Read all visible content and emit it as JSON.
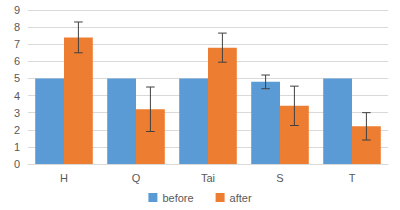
{
  "chart_data": {
    "type": "bar",
    "categories": [
      "H",
      "Q",
      "Tai",
      "S",
      "T"
    ],
    "series": [
      {
        "name": "before",
        "color": "#5b9bd5",
        "values": [
          5,
          5,
          5,
          4.8,
          5
        ],
        "errors": [
          0,
          0,
          0,
          0.4,
          0
        ]
      },
      {
        "name": "after",
        "color": "#ed7d31",
        "values": [
          7.4,
          3.2,
          6.8,
          3.4,
          2.2
        ],
        "errors": [
          0.9,
          1.3,
          0.85,
          1.15,
          0.8
        ]
      }
    ],
    "ylim": [
      0,
      9
    ],
    "yticks": [
      0,
      1,
      2,
      3,
      4,
      5,
      6,
      7,
      8,
      9
    ],
    "grid": true,
    "legend": "bottom"
  }
}
